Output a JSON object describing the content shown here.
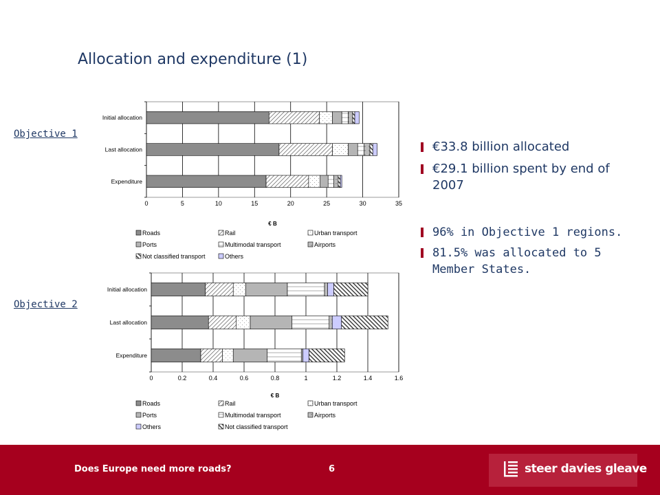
{
  "slide": {
    "title": "Allocation and expenditure (1)",
    "objective1_label": "Objective 1",
    "objective2_label": "Objective 2"
  },
  "bullets": [
    "€33.8 billion allocated",
    " €29.1 billion spent by end of 2007",
    "96% in Objective 1 regions.",
    "81.5% was allocated to 5 Member States."
  ],
  "footer": {
    "text": "Does Europe need more roads?",
    "page": "6",
    "logo_text": "steer davies gleave"
  },
  "colors": {
    "footer": "#a6001e",
    "title": "#1f3864",
    "logo_bg": "#b7213b"
  },
  "chart_data": [
    {
      "type": "bar",
      "orientation": "horizontal",
      "stacked": true,
      "categories": [
        "Initial allocation",
        "Last allocation",
        "Expenditure"
      ],
      "xlabel": "€ B",
      "xlim": [
        0,
        35
      ],
      "xticks": [
        "0",
        "5",
        "10",
        "15",
        "20",
        "25",
        "30",
        "35"
      ],
      "grid": true,
      "legend_position": "bottom",
      "series": [
        {
          "name": "Roads",
          "values": [
            17.0,
            18.4,
            16.6
          ]
        },
        {
          "name": "Rail",
          "values": [
            7.0,
            7.4,
            5.9
          ]
        },
        {
          "name": "Urban transport",
          "values": [
            1.8,
            2.2,
            1.6
          ]
        },
        {
          "name": "Ports",
          "values": [
            1.3,
            1.3,
            1.1
          ]
        },
        {
          "name": "Multimodal transport",
          "values": [
            0.9,
            0.9,
            0.8
          ]
        },
        {
          "name": "Airports",
          "values": [
            0.6,
            0.8,
            0.6
          ]
        },
        {
          "name": "Not classified transport",
          "values": [
            0.3,
            0.4,
            0.3
          ]
        },
        {
          "name": "Others",
          "values": [
            0.6,
            0.6,
            0.2
          ]
        }
      ]
    },
    {
      "type": "bar",
      "orientation": "horizontal",
      "stacked": true,
      "categories": [
        "Initial allocation",
        "Last allocation",
        "Expenditure"
      ],
      "xlabel": "€ B",
      "xlim": [
        0,
        1.6
      ],
      "xticks": [
        "0",
        "0.2",
        "0.4",
        "0.6",
        "0.8",
        "1",
        "1.2",
        "1.4",
        "1.6"
      ],
      "grid": true,
      "legend_position": "bottom",
      "series": [
        {
          "name": "Roads",
          "values": [
            0.35,
            0.37,
            0.32
          ]
        },
        {
          "name": "Rail",
          "values": [
            0.18,
            0.18,
            0.14
          ]
        },
        {
          "name": "Urban transport",
          "values": [
            0.08,
            0.09,
            0.07
          ]
        },
        {
          "name": "Ports",
          "values": [
            0.27,
            0.27,
            0.22
          ]
        },
        {
          "name": "Multimodal transport",
          "values": [
            0.24,
            0.24,
            0.22
          ]
        },
        {
          "name": "Airports",
          "values": [
            0.02,
            0.02,
            0.01
          ]
        },
        {
          "name": "Others",
          "values": [
            0.04,
            0.06,
            0.04
          ]
        },
        {
          "name": "Not classified transport",
          "values": [
            0.22,
            0.3,
            0.23
          ]
        }
      ]
    }
  ]
}
